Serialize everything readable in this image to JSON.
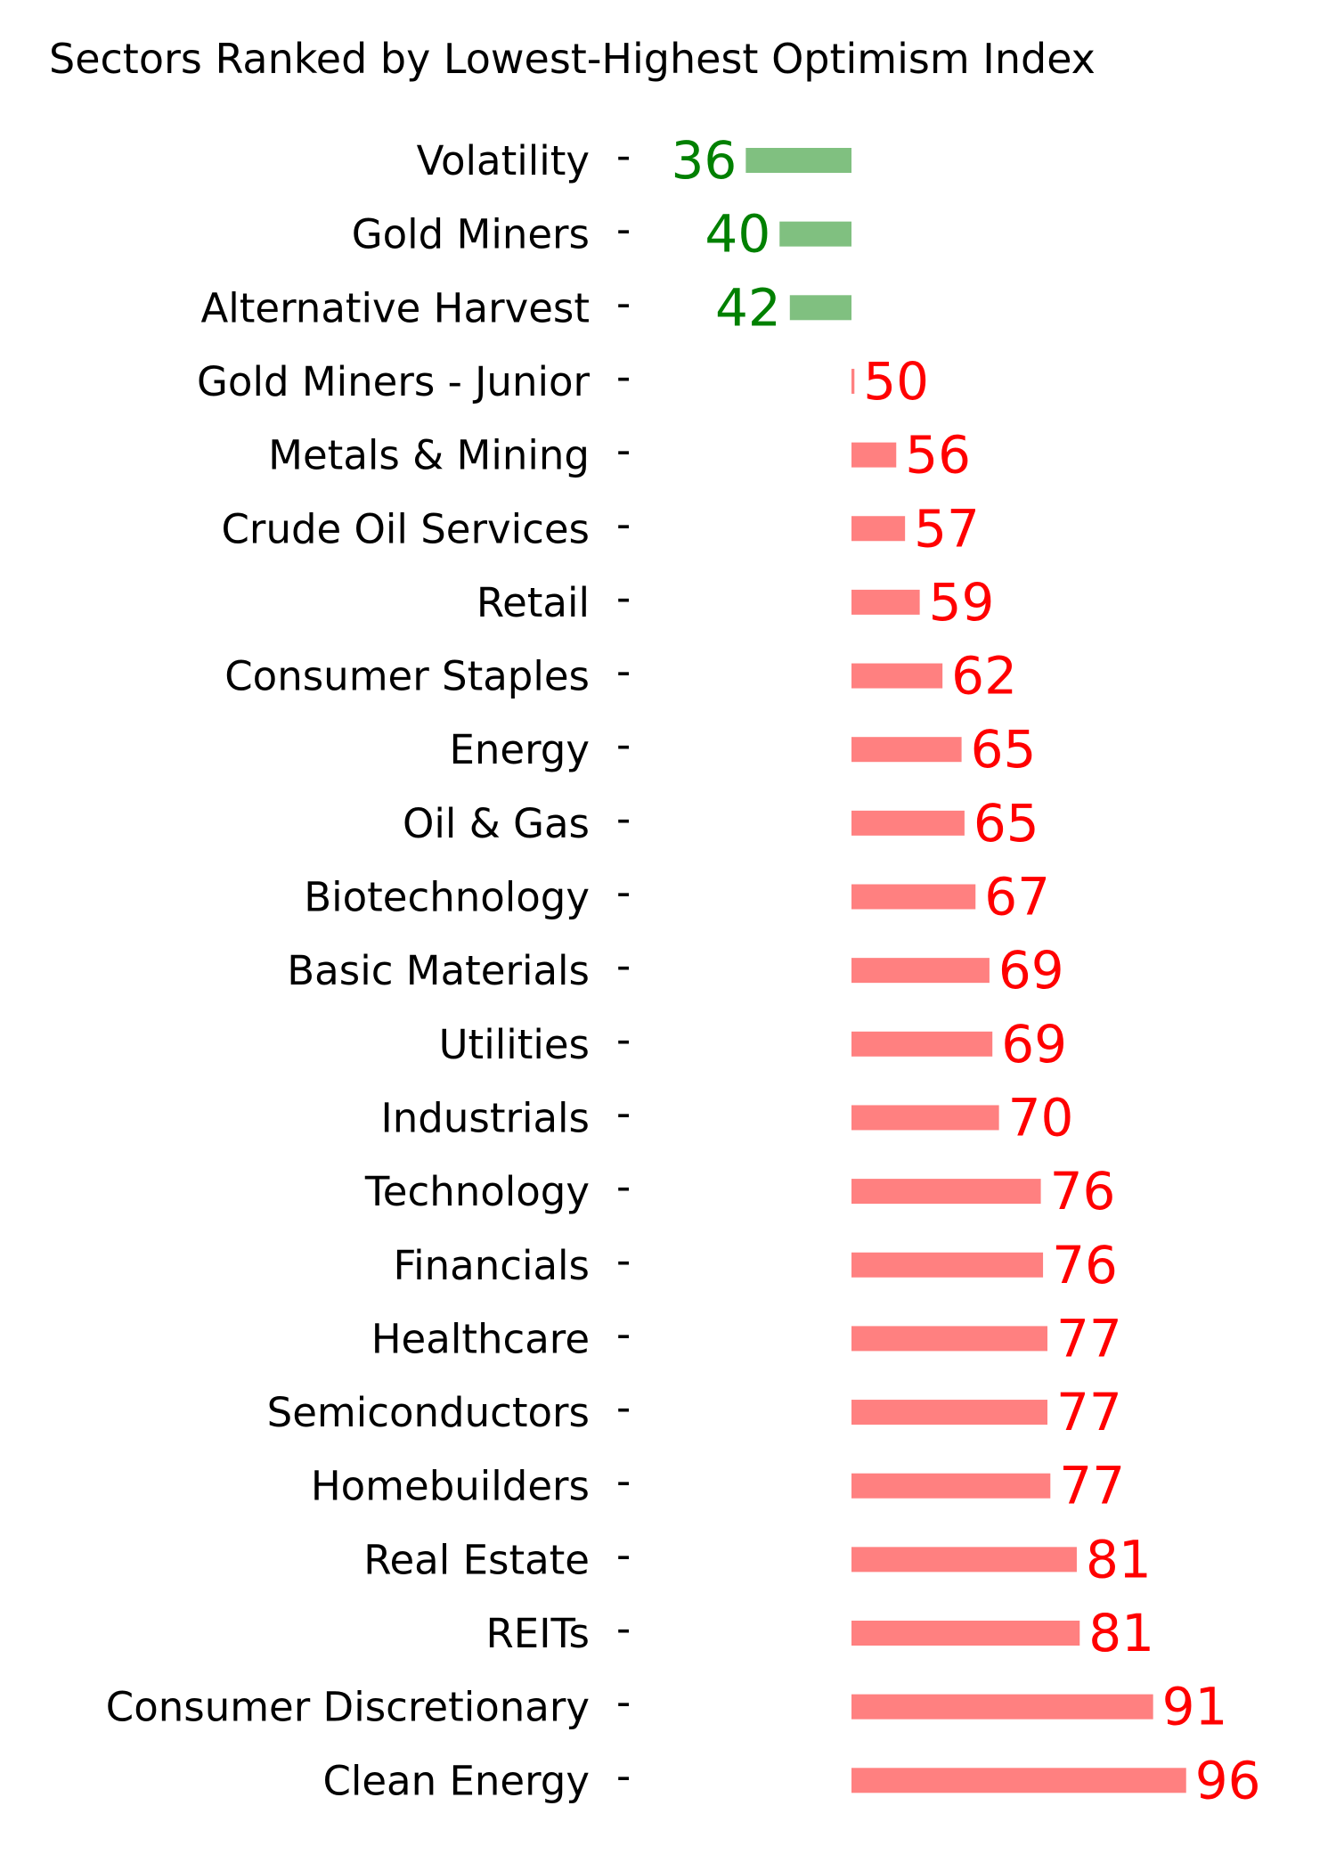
{
  "chart_data": {
    "type": "bar",
    "orientation": "horizontal",
    "title": "Sectors Ranked by Lowest-Highest Optimism Index",
    "xlabel": "",
    "ylabel": "",
    "baseline": 50,
    "xlim": [
      30,
      100
    ],
    "grid": false,
    "legend": "none",
    "tick_mark": "-",
    "colors": {
      "below_baseline": "#80c080",
      "above_baseline": "#ff8080",
      "below_baseline_text": "#008000",
      "above_baseline_text": "#ff0000"
    },
    "categories": [
      "Volatility",
      "Gold Miners",
      "Alternative Harvest",
      "Gold Miners - Junior",
      "Metals & Mining",
      "Crude Oil Services",
      "Retail",
      "Consumer Staples",
      "Energy",
      "Oil & Gas",
      "Biotechnology",
      "Basic Materials",
      "Utilities",
      "Industrials",
      "Technology",
      "Financials",
      "Healthcare",
      "Semiconductors",
      "Homebuilders",
      "Real Estate",
      "REITs",
      "Consumer Discretionary",
      "Clean Energy"
    ],
    "values": [
      35.6,
      40.2,
      41.6,
      50.4,
      56.1,
      57.3,
      59.3,
      62.4,
      65.0,
      65.4,
      66.9,
      68.8,
      69.2,
      70.1,
      75.8,
      76.1,
      76.7,
      76.7,
      77.1,
      80.7,
      81.1,
      91.1,
      95.6
    ],
    "value_labels": [
      "36",
      "40",
      "42",
      "50",
      "56",
      "57",
      "59",
      "62",
      "65",
      "65",
      "67",
      "69",
      "69",
      "70",
      "76",
      "76",
      "77",
      "77",
      "77",
      "81",
      "81",
      "91",
      "96"
    ]
  }
}
